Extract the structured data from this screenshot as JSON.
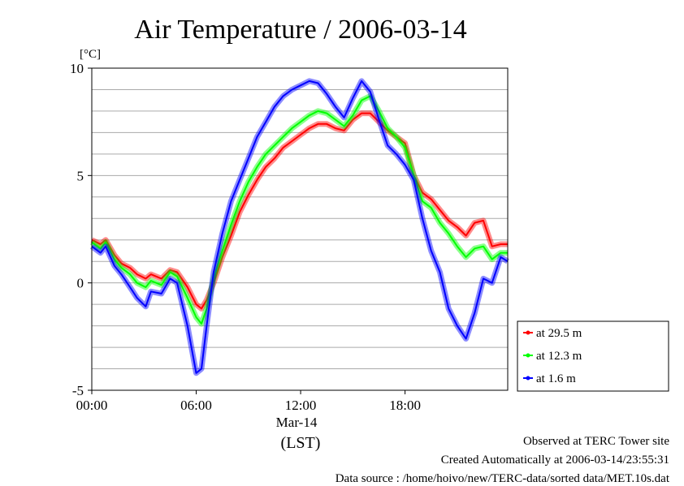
{
  "chart_data": {
    "type": "line",
    "title": "Air Temperature / 2006-03-14",
    "ylabel": "[°C]",
    "xlabel": "(LST)",
    "x_date_label": "Mar-14",
    "x_unit": "hour",
    "xlim": [
      0,
      23.9
    ],
    "ylim": [
      -5,
      10
    ],
    "yticks": [
      -5,
      0,
      5,
      10
    ],
    "y_minor_step": 1,
    "xticks": [
      {
        "x": 0,
        "label": "00:00"
      },
      {
        "x": 6,
        "label": "06:00"
      },
      {
        "x": 12,
        "label": "12:00"
      },
      {
        "x": 18,
        "label": "18:00"
      }
    ],
    "grid": true,
    "legend_position": "bottom-right-outside",
    "series": [
      {
        "name": "at 29.5 m",
        "color": "#ff0000",
        "x": [
          0,
          0.5,
          0.8,
          1.3,
          1.7,
          2.2,
          2.6,
          3.1,
          3.4,
          4.0,
          4.5,
          4.9,
          5.5,
          6.0,
          6.3,
          6.6,
          7.0,
          7.5,
          8.0,
          8.5,
          9.0,
          9.5,
          10.0,
          10.5,
          11.0,
          11.5,
          12.0,
          12.5,
          13.0,
          13.5,
          14.0,
          14.5,
          15.0,
          15.5,
          16.0,
          16.5,
          17.0,
          17.5,
          18.0,
          18.5,
          19.0,
          19.5,
          20.0,
          20.5,
          21.0,
          21.5,
          22.0,
          22.5,
          23.0,
          23.5,
          23.9
        ],
        "y": [
          2.0,
          1.8,
          2.0,
          1.3,
          0.9,
          0.7,
          0.4,
          0.2,
          0.4,
          0.2,
          0.6,
          0.5,
          -0.2,
          -1.0,
          -1.2,
          -0.8,
          0.0,
          1.2,
          2.2,
          3.3,
          4.1,
          4.8,
          5.4,
          5.8,
          6.3,
          6.6,
          6.9,
          7.2,
          7.4,
          7.4,
          7.2,
          7.1,
          7.6,
          7.9,
          7.9,
          7.5,
          7.1,
          6.8,
          6.5,
          5.0,
          4.2,
          3.9,
          3.4,
          2.9,
          2.6,
          2.2,
          2.8,
          2.9,
          1.7,
          1.8,
          1.8
        ]
      },
      {
        "name": "at 12.3 m",
        "color": "#00ff00",
        "x": [
          0,
          0.5,
          0.8,
          1.3,
          1.7,
          2.2,
          2.6,
          3.1,
          3.4,
          4.0,
          4.5,
          4.9,
          5.5,
          6.0,
          6.3,
          6.6,
          7.0,
          7.5,
          8.0,
          8.5,
          9.0,
          9.5,
          10.0,
          10.5,
          11.0,
          11.5,
          12.0,
          12.5,
          13.0,
          13.5,
          14.0,
          14.5,
          15.0,
          15.5,
          16.0,
          16.5,
          17.0,
          17.5,
          18.0,
          18.5,
          19.0,
          19.5,
          20.0,
          20.5,
          21.0,
          21.5,
          22.0,
          22.5,
          23.0,
          23.5,
          23.9
        ],
        "y": [
          1.9,
          1.6,
          1.9,
          1.1,
          0.7,
          0.4,
          0.0,
          -0.2,
          0.1,
          -0.1,
          0.5,
          0.3,
          -0.7,
          -1.6,
          -1.9,
          -1.2,
          0.2,
          1.5,
          2.7,
          3.8,
          4.7,
          5.4,
          6.0,
          6.4,
          6.8,
          7.2,
          7.5,
          7.8,
          8.0,
          7.9,
          7.6,
          7.3,
          7.8,
          8.5,
          8.7,
          8.0,
          7.2,
          6.8,
          6.3,
          5.0,
          3.8,
          3.5,
          2.8,
          2.3,
          1.7,
          1.2,
          1.6,
          1.7,
          1.1,
          1.4,
          1.4
        ]
      },
      {
        "name": "at 1.6 m",
        "color": "#0000ff",
        "x": [
          0,
          0.5,
          0.8,
          1.3,
          1.7,
          2.2,
          2.6,
          3.1,
          3.4,
          4.0,
          4.5,
          4.9,
          5.5,
          6.0,
          6.3,
          6.6,
          7.0,
          7.5,
          8.0,
          8.5,
          9.0,
          9.5,
          10.0,
          10.5,
          11.0,
          11.5,
          12.0,
          12.5,
          13.0,
          13.5,
          14.0,
          14.5,
          15.0,
          15.5,
          16.0,
          16.5,
          17.0,
          17.5,
          18.0,
          18.5,
          19.0,
          19.5,
          20.0,
          20.5,
          21.0,
          21.5,
          22.0,
          22.5,
          23.0,
          23.5,
          23.9
        ],
        "y": [
          1.7,
          1.4,
          1.7,
          0.8,
          0.4,
          -0.2,
          -0.7,
          -1.1,
          -0.4,
          -0.5,
          0.2,
          0.0,
          -2.0,
          -4.2,
          -4.0,
          -2.0,
          0.5,
          2.3,
          3.8,
          4.8,
          5.8,
          6.8,
          7.5,
          8.2,
          8.7,
          9.0,
          9.2,
          9.4,
          9.3,
          8.8,
          8.2,
          7.7,
          8.6,
          9.4,
          8.9,
          7.6,
          6.4,
          6.0,
          5.5,
          4.8,
          3.0,
          1.5,
          0.5,
          -1.2,
          -2.0,
          -2.6,
          -1.4,
          0.2,
          0.0,
          1.2,
          1.0
        ]
      }
    ]
  },
  "footer": {
    "line1": "Observed at TERC Tower site",
    "line2": "Created Automatically at 2006-03-14/23:55:31",
    "line3": "Data source : /home/hoivo/new/TERC-data/sorted  data/MET.10s.dat"
  }
}
